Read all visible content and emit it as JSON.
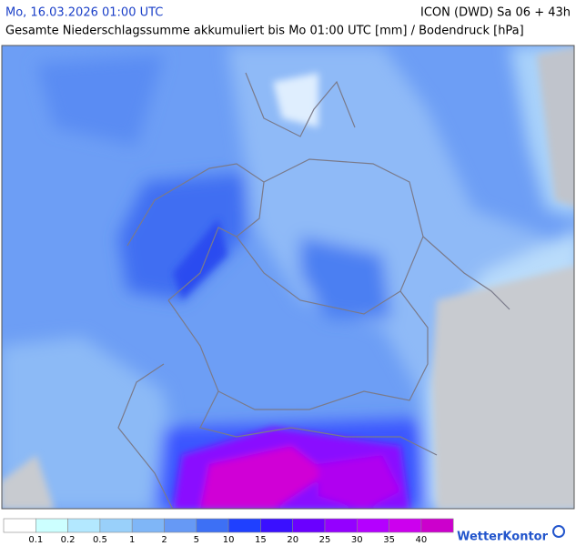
{
  "header": {
    "date": "Mo, 16.03.2026 01:00 UTC",
    "model": "ICON (DWD) Sa 06 + 43h",
    "title": "Gesamte Niederschlagssumme akkumuliert bis Mo 01:00 UTC [mm] / Bodendruck [hPa]"
  },
  "legend": {
    "colors": [
      "#ffffff",
      "#ccffff",
      "#b3e8ff",
      "#99d0fa",
      "#7fb6f7",
      "#6699f5",
      "#3d70f5",
      "#1f40ff",
      "#3a10ff",
      "#6a00ff",
      "#9400ff",
      "#b400ff",
      "#cc00ee",
      "#cc00cc"
    ],
    "labels": [
      "0.1",
      "0.2",
      "0.5",
      "1",
      "2",
      "5",
      "10",
      "15",
      "20",
      "25",
      "30",
      "35",
      "40"
    ]
  },
  "logo": "WetterKontor"
}
